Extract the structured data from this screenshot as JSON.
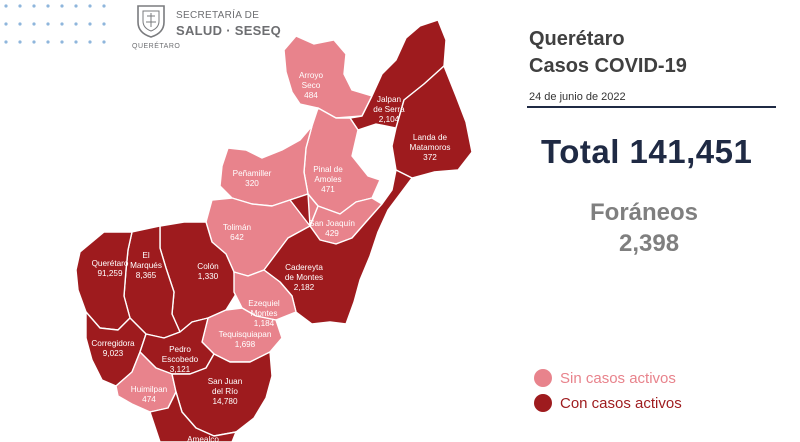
{
  "header": {
    "agency_line1": "SECRETARÍA DE",
    "agency_line2": "SALUD · SESEQ",
    "seal_caption": "QUERÉTARO"
  },
  "title": {
    "line1": "Querétaro",
    "line2": "Casos COVID-19"
  },
  "date": "24 de junio de 2022",
  "total_label": "Total 141,451",
  "foraneos": {
    "label": "Foráneos",
    "value": "2,398"
  },
  "legend": [
    {
      "label": "Sin casos activos",
      "color": "#e8838c"
    },
    {
      "label": "Con casos activos",
      "color": "#9e1b1e"
    }
  ],
  "colors": {
    "active": "#9e1b1e",
    "inactive": "#e8838c",
    "border": "#ffffff",
    "title": "#404040",
    "total": "#1f2a44",
    "foraneos": "#7f7f7f"
  },
  "municipalities": [
    {
      "name": "Arroyo Seco",
      "label_lines": [
        "Arroyo",
        "Seco",
        "484"
      ],
      "cases": 484,
      "active": false
    },
    {
      "name": "Jalpan de Serra",
      "label_lines": [
        "Jalpan",
        "de Serra",
        "2,104"
      ],
      "cases": 2104,
      "active": true
    },
    {
      "name": "Landa de Matamoros",
      "label_lines": [
        "Landa de",
        "Matamoros",
        "372"
      ],
      "cases": 372,
      "active": true
    },
    {
      "name": "Pinal de Amoles",
      "label_lines": [
        "Pinal de",
        "Amoles",
        "471"
      ],
      "cases": 471,
      "active": false
    },
    {
      "name": "Peñamiller",
      "label_lines": [
        "Peñamiller",
        "320"
      ],
      "cases": 320,
      "active": false
    },
    {
      "name": "San Joaquín",
      "label_lines": [
        "San Joaquín",
        "429"
      ],
      "cases": 429,
      "active": false
    },
    {
      "name": "Tolimán",
      "label_lines": [
        "Tolimán",
        "642"
      ],
      "cases": 642,
      "active": false
    },
    {
      "name": "Cadereyta de Montes",
      "label_lines": [
        "Cadereyta",
        "de Montes",
        "2,182"
      ],
      "cases": 2182,
      "active": true
    },
    {
      "name": "Colón",
      "label_lines": [
        "Colón",
        "1,330"
      ],
      "cases": 1330,
      "active": true
    },
    {
      "name": "El Marqués",
      "label_lines": [
        "El",
        "Marqués",
        "8,365"
      ],
      "cases": 8365,
      "active": true
    },
    {
      "name": "Querétaro",
      "label_lines": [
        "Querétaro",
        "91,259"
      ],
      "cases": 91259,
      "active": true
    },
    {
      "name": "Ezequiel Montes",
      "label_lines": [
        "Ezequiel",
        "Montes",
        "1,184"
      ],
      "cases": 1184,
      "active": false
    },
    {
      "name": "Tequisquiapan",
      "label_lines": [
        "Tequisquiapan",
        "1,698"
      ],
      "cases": 1698,
      "active": false
    },
    {
      "name": "Corregidora",
      "label_lines": [
        "Corregidora",
        "9,023"
      ],
      "cases": 9023,
      "active": true
    },
    {
      "name": "Pedro Escobedo",
      "label_lines": [
        "Pedro",
        "Escobedo",
        "3,121"
      ],
      "cases": 3121,
      "active": true
    },
    {
      "name": "Huimilpan",
      "label_lines": [
        "Huimilpan",
        "474"
      ],
      "cases": 474,
      "active": false
    },
    {
      "name": "San Juan del Río",
      "label_lines": [
        "San Juan",
        "del Río",
        "14,780"
      ],
      "cases": 14780,
      "active": true
    },
    {
      "name": "Amealco",
      "label_lines": [
        "Amealco"
      ],
      "cases": null,
      "active": true
    }
  ]
}
